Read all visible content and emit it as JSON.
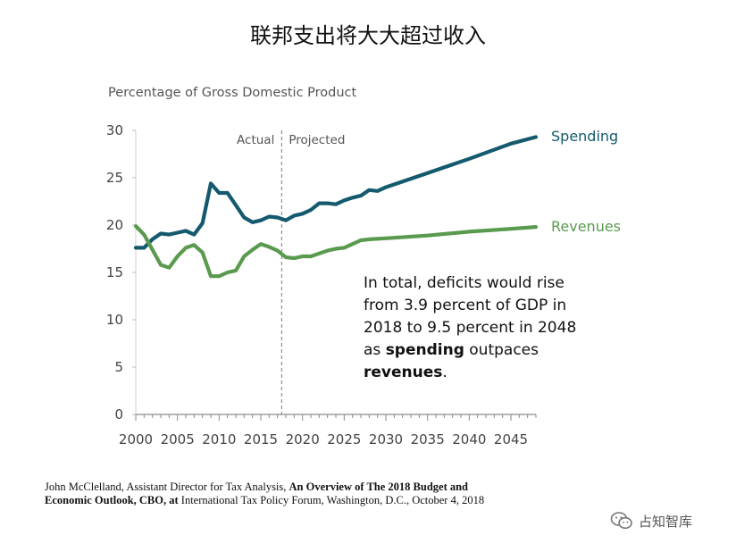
{
  "page_title": "联邦支出将大大超过收入",
  "chart_data": {
    "type": "line",
    "ylabel": "Percentage of Gross Domestic Product",
    "xlim": [
      2000,
      2048
    ],
    "ylim": [
      0,
      30
    ],
    "x_ticks": [
      2000,
      2005,
      2010,
      2015,
      2020,
      2025,
      2030,
      2035,
      2040,
      2045
    ],
    "y_ticks": [
      0,
      5,
      10,
      15,
      20,
      25,
      30
    ],
    "divider_x": 2017.5,
    "regions": {
      "actual": "Actual",
      "projected": "Projected"
    },
    "series": [
      {
        "name": "Spending",
        "color": "#145a6e",
        "x": [
          2000,
          2001,
          2002,
          2003,
          2004,
          2005,
          2006,
          2007,
          2008,
          2009,
          2010,
          2011,
          2012,
          2013,
          2014,
          2015,
          2016,
          2017,
          2018,
          2019,
          2020,
          2021,
          2022,
          2023,
          2024,
          2025,
          2026,
          2027,
          2028,
          2029,
          2030,
          2035,
          2040,
          2045,
          2048
        ],
        "y": [
          17.6,
          17.6,
          18.5,
          19.1,
          19.0,
          19.2,
          19.4,
          19.0,
          20.2,
          24.4,
          23.4,
          23.4,
          22.1,
          20.8,
          20.3,
          20.5,
          20.9,
          20.8,
          20.5,
          21.0,
          21.2,
          21.6,
          22.3,
          22.3,
          22.2,
          22.6,
          22.9,
          23.1,
          23.7,
          23.6,
          24.0,
          25.5,
          27.0,
          28.6,
          29.3
        ]
      },
      {
        "name": "Revenues",
        "color": "#5a9a4e",
        "x": [
          2000,
          2001,
          2002,
          2003,
          2004,
          2005,
          2006,
          2007,
          2008,
          2009,
          2010,
          2011,
          2012,
          2013,
          2014,
          2015,
          2016,
          2017,
          2018,
          2019,
          2020,
          2021,
          2022,
          2023,
          2024,
          2025,
          2026,
          2027,
          2028,
          2030,
          2035,
          2040,
          2045,
          2048
        ],
        "y": [
          19.9,
          19.0,
          17.4,
          15.8,
          15.5,
          16.7,
          17.6,
          17.9,
          17.1,
          14.6,
          14.6,
          15.0,
          15.2,
          16.7,
          17.4,
          18.0,
          17.7,
          17.3,
          16.6,
          16.5,
          16.7,
          16.7,
          17.0,
          17.3,
          17.5,
          17.6,
          18.0,
          18.4,
          18.5,
          18.6,
          18.9,
          19.3,
          19.6,
          19.8
        ]
      }
    ],
    "annotation": {
      "line1": "In total, deficits would rise",
      "line2": "from 3.9 percent of GDP in",
      "line3": "2018 to 9.5 percent in 2048",
      "line4_prefix": "as ",
      "line4_bold": "spending",
      "line4_suffix": " outpaces",
      "line5_bold": "revenues",
      "line5_suffix": "."
    }
  },
  "citation": {
    "author": "John McClelland, Assistant Director for Tax Analysis, ",
    "title": "An Overview of The 2018 Budget and Economic Outlook, CBO, at",
    "venue": " International Tax Policy Forum, Washington, D.C., October 4, 2018"
  },
  "watermark": {
    "icon": "wechat-icon",
    "text": "占知智库"
  }
}
